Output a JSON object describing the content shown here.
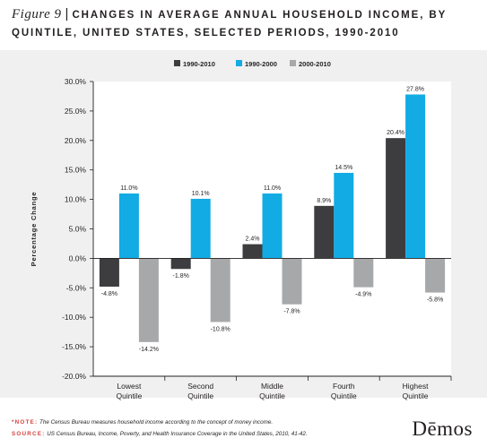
{
  "header": {
    "figure_label": "Figure 9",
    "title_line1": "CHANGES IN AVERAGE ANNUAL HOUSEHOLD INCOME, BY",
    "title_line2": "QUINTILE, UNITED STATES, SELECTED PERIODS, 1990-2010"
  },
  "chart_data": {
    "type": "bar",
    "title": "CHANGES IN AVERAGE ANNUAL HOUSEHOLD INCOME, BY QUINTILE, UNITED STATES, SELECTED PERIODS, 1990-2010",
    "categories": [
      "Lowest Quintile",
      "Second Quintile",
      "Middle Quintile",
      "Fourth Quintile",
      "Highest Quintile"
    ],
    "series": [
      {
        "name": "1990-2010",
        "color": "#3d3c3e",
        "values": [
          -4.8,
          -1.8,
          2.4,
          8.9,
          20.4
        ],
        "labels": [
          "-4.8%",
          "-1.8%",
          "2.4%",
          "8.9%",
          "20.4%"
        ]
      },
      {
        "name": "1990-2000",
        "color": "#12abe4",
        "values": [
          11.0,
          10.1,
          11.0,
          14.5,
          27.8
        ],
        "labels": [
          "11.0%",
          "10.1%",
          "11.0%",
          "14.5%",
          "27.8%"
        ]
      },
      {
        "name": "2000-2010",
        "color": "#a7a8aa",
        "values": [
          -14.2,
          -10.8,
          -7.8,
          -4.9,
          -5.8
        ],
        "labels": [
          "-14.2%",
          "-10.8%",
          "-7.8%",
          "-4.9%",
          "-5.8%"
        ]
      }
    ],
    "ylabel": "Percentage Change",
    "ylim": [
      -20,
      30
    ],
    "yticks": [
      30,
      25,
      20,
      15,
      10,
      5,
      0,
      -5,
      -10,
      -15,
      -20
    ],
    "ytick_labels": [
      "30.0%",
      "25.0%",
      "20.0%",
      "15.0%",
      "10.0%",
      "5.0%",
      "0.0%",
      "-5.0%",
      "-10.0%",
      "-15.0%",
      "-20.0%"
    ],
    "legend_position": "top",
    "grid": false
  },
  "notes": {
    "note_label": "*NOTE:",
    "note_text": "The Census Bureau measures household income according to the concept of money income.",
    "source_label": "SOURCE:",
    "source_text": "US Census Bureau, Income, Poverty, and Health Insurance Coverage in the United States, 2010, 41-42."
  },
  "brand": {
    "name": "Dēmos"
  }
}
